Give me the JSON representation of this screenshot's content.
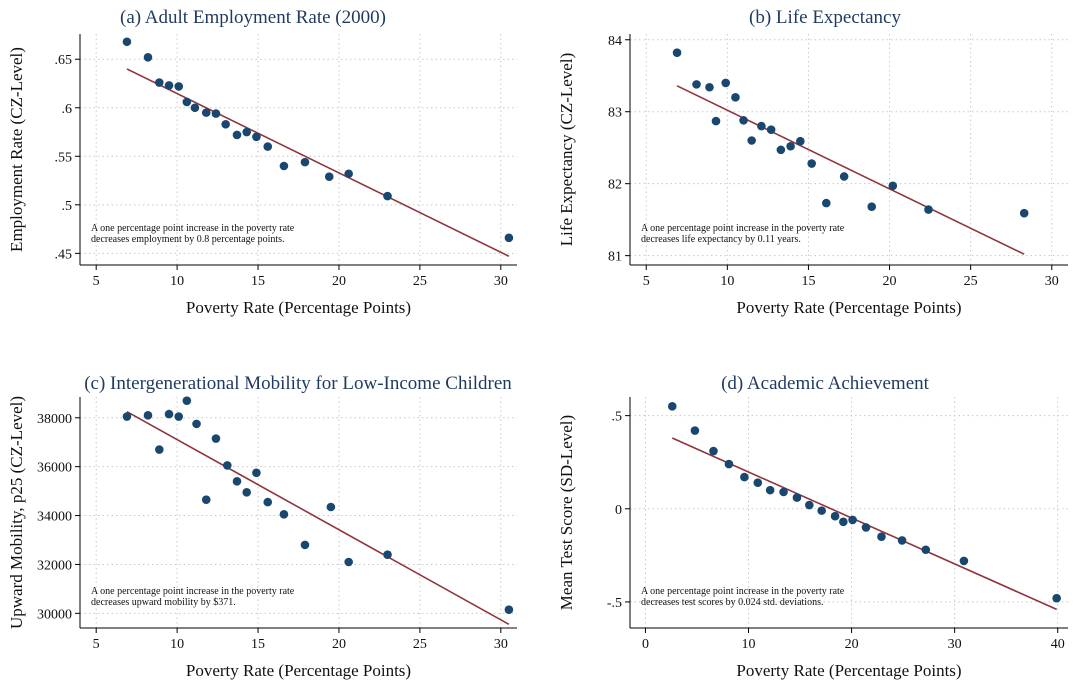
{
  "colors": {
    "point": "#1a476f",
    "fit": "#90353b",
    "title": "#1f3a5f"
  },
  "chart_data": [
    {
      "type": "scatter",
      "title": "(a) Adult Employment Rate (2000)",
      "xlabel": "Poverty Rate (Percentage Points)",
      "ylabel": "Employment Rate (CZ-Level)",
      "xlim": [
        4,
        31
      ],
      "ylim": [
        0.438,
        0.676
      ],
      "xticks": [
        5,
        10,
        15,
        20,
        25,
        30
      ],
      "xtick_labels": [
        "5",
        "10",
        "15",
        "20",
        "25",
        "30"
      ],
      "yticks": [
        0.45,
        0.5,
        0.55,
        0.6,
        0.65
      ],
      "ytick_labels": [
        ".45",
        ".5",
        ".55",
        ".6",
        ".65"
      ],
      "grid": true,
      "note": [
        "A one percentage point increase in the poverty rate",
        "decreases employment by 0.8 percentage points."
      ],
      "points": [
        [
          6.9,
          0.668
        ],
        [
          8.2,
          0.652
        ],
        [
          8.9,
          0.626
        ],
        [
          9.5,
          0.623
        ],
        [
          10.1,
          0.622
        ],
        [
          10.6,
          0.606
        ],
        [
          11.1,
          0.6
        ],
        [
          11.8,
          0.595
        ],
        [
          12.4,
          0.594
        ],
        [
          13.0,
          0.583
        ],
        [
          13.7,
          0.572
        ],
        [
          14.3,
          0.575
        ],
        [
          14.9,
          0.57
        ],
        [
          15.6,
          0.56
        ],
        [
          16.6,
          0.54
        ],
        [
          17.9,
          0.544
        ],
        [
          19.4,
          0.529
        ],
        [
          20.6,
          0.532
        ],
        [
          23.0,
          0.509
        ],
        [
          30.5,
          0.466
        ]
      ],
      "fit": [
        [
          6.9,
          0.64
        ],
        [
          30.5,
          0.447
        ]
      ]
    },
    {
      "type": "scatter",
      "title": "(b) Life Expectancy",
      "xlabel": "Poverty Rate (Percentage Points)",
      "ylabel": "Life Expectancy (CZ-Level)",
      "xlim": [
        4,
        31
      ],
      "ylim": [
        80.87,
        84.08
      ],
      "xticks": [
        5,
        10,
        15,
        20,
        25,
        30
      ],
      "xtick_labels": [
        "5",
        "10",
        "15",
        "20",
        "25",
        "30"
      ],
      "yticks": [
        81,
        82,
        83,
        84
      ],
      "ytick_labels": [
        "81",
        "82",
        "83",
        "84"
      ],
      "grid": true,
      "note": [
        "A one percentage point increase in the poverty rate",
        "decreases life expectancy by 0.11 years."
      ],
      "points": [
        [
          6.9,
          83.82
        ],
        [
          8.1,
          83.38
        ],
        [
          8.9,
          83.34
        ],
        [
          9.3,
          82.87
        ],
        [
          9.9,
          83.4
        ],
        [
          10.5,
          83.2
        ],
        [
          11.0,
          82.88
        ],
        [
          11.5,
          82.6
        ],
        [
          12.1,
          82.8
        ],
        [
          12.7,
          82.75
        ],
        [
          13.3,
          82.47
        ],
        [
          13.9,
          82.52
        ],
        [
          14.5,
          82.59
        ],
        [
          15.2,
          82.28
        ],
        [
          16.1,
          81.73
        ],
        [
          17.2,
          82.1
        ],
        [
          18.9,
          81.68
        ],
        [
          20.2,
          81.97
        ],
        [
          22.4,
          81.64
        ],
        [
          28.3,
          81.59
        ]
      ],
      "fit": [
        [
          6.9,
          83.36
        ],
        [
          28.3,
          81.02
        ]
      ]
    },
    {
      "type": "scatter",
      "title": "(c) Intergenerational Mobility for Low-Income Children",
      "xlabel": "Poverty Rate (Percentage Points)",
      "ylabel": "Upward Mobility, p25 (CZ-Level)",
      "xlim": [
        4,
        31
      ],
      "ylim": [
        29400,
        38850
      ],
      "xticks": [
        5,
        10,
        15,
        20,
        25,
        30
      ],
      "xtick_labels": [
        "5",
        "10",
        "15",
        "20",
        "25",
        "30"
      ],
      "yticks": [
        30000,
        32000,
        34000,
        36000,
        38000
      ],
      "ytick_labels": [
        "30000",
        "32000",
        "34000",
        "36000",
        "38000"
      ],
      "grid": true,
      "note": [
        "A one percentage point increase in the poverty rate",
        "decreases upward mobility by $371."
      ],
      "points": [
        [
          6.9,
          38050
        ],
        [
          8.2,
          38100
        ],
        [
          8.9,
          36700
        ],
        [
          9.5,
          38150
        ],
        [
          10.1,
          38050
        ],
        [
          10.6,
          38700
        ],
        [
          11.2,
          37750
        ],
        [
          11.8,
          34650
        ],
        [
          12.4,
          37150
        ],
        [
          13.1,
          36050
        ],
        [
          13.7,
          35400
        ],
        [
          14.3,
          34950
        ],
        [
          14.9,
          35750
        ],
        [
          15.6,
          34550
        ],
        [
          16.6,
          34050
        ],
        [
          17.9,
          32800
        ],
        [
          19.5,
          34350
        ],
        [
          20.6,
          32100
        ],
        [
          23.0,
          32400
        ],
        [
          30.5,
          30150
        ]
      ],
      "fit": [
        [
          6.9,
          38250
        ],
        [
          30.5,
          29550
        ]
      ]
    },
    {
      "type": "scatter",
      "title": "(d) Academic Achievement",
      "xlabel": "Poverty Rate (Percentage Points)",
      "ylabel": "Mean Test Score (SD-Level)",
      "xlim": [
        -1.5,
        41
      ],
      "ylim": [
        -0.64,
        0.6
      ],
      "xticks": [
        0,
        10,
        20,
        30,
        40
      ],
      "xtick_labels": [
        "0",
        "10",
        "20",
        "30",
        "40"
      ],
      "yticks": [
        -0.5,
        0,
        0.5
      ],
      "ytick_labels": [
        "-.5",
        "0",
        ".5"
      ],
      "grid": true,
      "note": [
        "A one percentage point increase in the poverty rate",
        "decreases test scores by 0.024 std. deviations."
      ],
      "points": [
        [
          2.6,
          0.55
        ],
        [
          4.8,
          0.42
        ],
        [
          6.6,
          0.31
        ],
        [
          8.1,
          0.24
        ],
        [
          9.6,
          0.17
        ],
        [
          10.9,
          0.14
        ],
        [
          12.1,
          0.1
        ],
        [
          13.4,
          0.09
        ],
        [
          14.7,
          0.06
        ],
        [
          15.9,
          0.02
        ],
        [
          17.1,
          -0.01
        ],
        [
          18.4,
          -0.04
        ],
        [
          19.2,
          -0.07
        ],
        [
          20.1,
          -0.06
        ],
        [
          21.4,
          -0.1
        ],
        [
          22.9,
          -0.15
        ],
        [
          24.9,
          -0.17
        ],
        [
          27.2,
          -0.22
        ],
        [
          30.9,
          -0.28
        ],
        [
          39.9,
          -0.48
        ]
      ],
      "fit": [
        [
          2.6,
          0.38
        ],
        [
          39.9,
          -0.54
        ]
      ]
    }
  ]
}
